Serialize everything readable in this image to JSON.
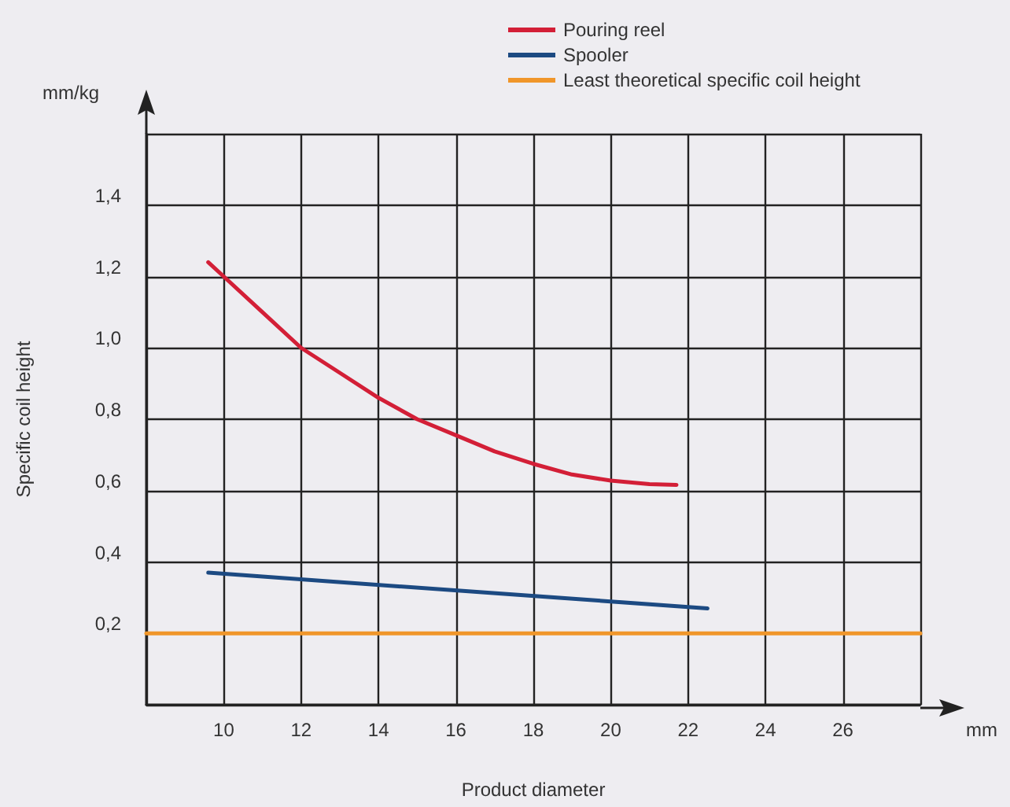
{
  "chart_data": {
    "type": "line",
    "xlabel": "Product diameter",
    "ylabel": "Specific coil height",
    "annotations": [
      "mm/kg",
      "mm"
    ],
    "xlim": [
      8,
      28
    ],
    "xticks": [
      {
        "value": 8,
        "label": null
      },
      10,
      12,
      14,
      16,
      18,
      20,
      22,
      24,
      26,
      {
        "value": 28,
        "label": null
      }
    ],
    "ylim": [
      0,
      1.6
    ],
    "yticks": [
      {
        "value": 0,
        "label": null
      },
      {
        "value": 0.2,
        "label": "0,2"
      },
      {
        "value": 0.4,
        "label": "0,4"
      },
      {
        "value": 0.6,
        "label": "0,6"
      },
      {
        "value": 0.8,
        "label": "0,8"
      },
      {
        "value": 1.0,
        "label": "1,0"
      },
      {
        "value": 1.2,
        "label": "1,2"
      },
      {
        "value": 1.4,
        "label": "1,4"
      },
      {
        "value": 1.6,
        "label": null
      }
    ],
    "grid": true,
    "legend": "top",
    "marker": "none",
    "line_style": "solid",
    "series": [
      {
        "name": "Pouring reel",
        "color": "#d31f37",
        "x": [
          9.6,
          10,
          11,
          12,
          13,
          14,
          15,
          16,
          17,
          18,
          19,
          20,
          21,
          21.7
        ],
        "values": [
          1.24,
          1.2,
          1.1,
          1.0,
          0.93,
          0.86,
          0.8,
          0.755,
          0.71,
          0.675,
          0.645,
          0.628,
          0.618,
          0.616
        ]
      },
      {
        "name": "Spooler",
        "color": "#1c4a82",
        "x": [
          9.6,
          22.5
        ],
        "values": [
          0.37,
          0.27
        ]
      },
      {
        "name": "Least theoretical specific coil height",
        "color": "#f0962a",
        "x": [
          8,
          28
        ],
        "values": [
          0.2,
          0.2
        ]
      }
    ]
  }
}
